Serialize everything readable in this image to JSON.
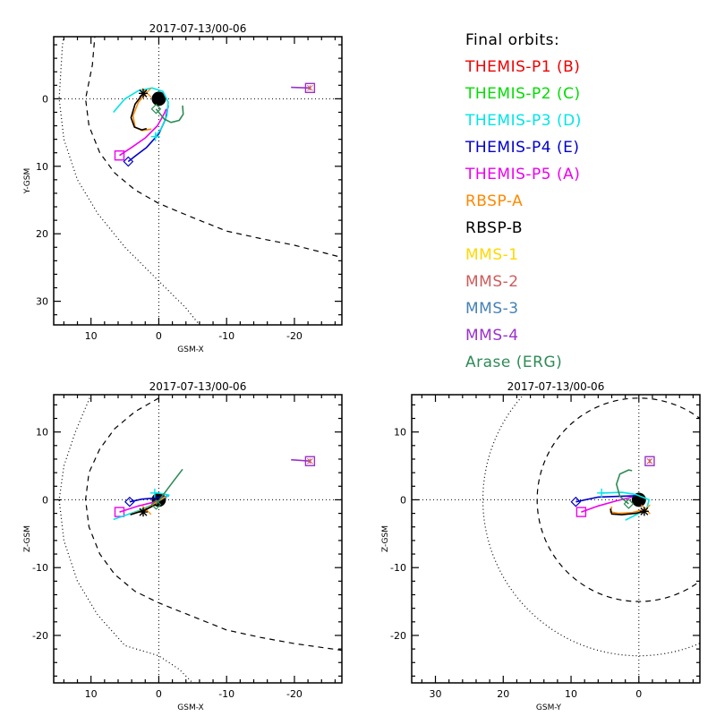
{
  "legend": {
    "title": "Final orbits:",
    "items": [
      {
        "label": "THEMIS-P1 (B)",
        "color": "#ee0000"
      },
      {
        "label": "THEMIS-P2 (C)",
        "color": "#00dd00"
      },
      {
        "label": "THEMIS-P3 (D)",
        "color": "#00e5e5"
      },
      {
        "label": "THEMIS-P4 (E)",
        "color": "#0000cc"
      },
      {
        "label": "THEMIS-P5 (A)",
        "color": "#ee00ee"
      },
      {
        "label": "RBSP-A",
        "color": "#ff8800"
      },
      {
        "label": "RBSP-B",
        "color": "#000000"
      },
      {
        "label": "MMS-1",
        "color": "#ffd700"
      },
      {
        "label": "MMS-2",
        "color": "#cd5c5c"
      },
      {
        "label": "MMS-3",
        "color": "#4682b4"
      },
      {
        "label": "MMS-4",
        "color": "#9932cc"
      },
      {
        "label": "Arase (ERG)",
        "color": "#2e8b57"
      }
    ]
  },
  "chart_data": [
    {
      "type": "line",
      "title": "2017-07-13/00-06",
      "xlabel": "GSM-X",
      "ylabel": "Y-GSM",
      "xlim": [
        15.5,
        -27
      ],
      "ylim": [
        -9.2,
        33.5
      ],
      "y_inverted": true,
      "xticks": [
        10,
        0,
        -10,
        -20
      ],
      "xtick_labels": [
        "10",
        "0",
        "-10",
        "-20"
      ],
      "yticks": [
        0,
        10,
        20,
        30
      ],
      "ytick_labels": [
        "0",
        "10",
        "20",
        "30"
      ],
      "grid": false,
      "zero_lines": true,
      "earth": {
        "x": 0,
        "y": 0,
        "r": 1
      },
      "boundaries": {
        "magnetopause": {
          "style": "dashed",
          "points": [
            [
              8.5,
              -20
            ],
            [
              9.8,
              -5
            ],
            [
              10.8,
              0
            ],
            [
              10.3,
              4
            ],
            [
              8.7,
              8
            ],
            [
              6.5,
              11
            ],
            [
              3.5,
              13.5
            ],
            [
              0,
              15.5
            ],
            [
              -5,
              17.6
            ],
            [
              -10,
              19.6
            ],
            [
              -15,
              20.7
            ],
            [
              -20,
              21.7
            ],
            [
              -27,
              23.5
            ]
          ]
        },
        "bow_shock": {
          "style": "dotted",
          "points": [
            [
              11.5,
              -25
            ],
            [
              14.2,
              -8
            ],
            [
              14.7,
              0
            ],
            [
              14,
              6
            ],
            [
              12,
              12
            ],
            [
              9,
              17
            ],
            [
              5,
              22
            ],
            [
              0,
              27
            ],
            [
              -4,
              31
            ],
            [
              -6,
              33.5
            ]
          ]
        }
      },
      "series": [
        {
          "name": "THEMIS-P4 (E)",
          "color": "#0000cc",
          "marker": "diamond",
          "points": [
            [
              4.5,
              9.3
            ],
            [
              3.5,
              8.5
            ],
            [
              1.8,
              7.2
            ],
            [
              0,
              5.2
            ],
            [
              -1,
              3
            ],
            [
              -1.4,
              1
            ]
          ]
        },
        {
          "name": "THEMIS-P5 (A)",
          "color": "#ee00ee",
          "marker": "square",
          "points": [
            [
              5.8,
              8.4
            ],
            [
              4,
              7.2
            ],
            [
              2,
              5.8
            ],
            [
              0.2,
              4
            ],
            [
              -0.8,
              2.2
            ],
            [
              -1.1,
              1.5
            ]
          ]
        },
        {
          "name": "THEMIS-P3 (D)",
          "color": "#00e5e5",
          "marker": "plus",
          "marker_at": [
            0.5,
            5.6
          ],
          "points": [
            [
              6.7,
              2
            ],
            [
              5,
              0
            ],
            [
              3,
              -1.2
            ],
            [
              1,
              -1.6
            ],
            [
              -0.6,
              -1.1
            ],
            [
              -1.4,
              0.5
            ],
            [
              -1.2,
              2.5
            ],
            [
              -0.3,
              4.5
            ],
            [
              0.5,
              5.6
            ]
          ]
        },
        {
          "name": "RBSP-A",
          "color": "#ff8800",
          "marker": "x",
          "marker_at": [
            1.8,
            -0.9
          ],
          "points": [
            [
              1.8,
              -0.9
            ],
            [
              3,
              0.5
            ],
            [
              3.8,
              2.5
            ],
            [
              3.5,
              4.2
            ],
            [
              2.5,
              4.7
            ],
            [
              1.1,
              4.5
            ]
          ]
        },
        {
          "name": "RBSP-B",
          "color": "#000000",
          "marker": "star",
          "marker_at": [
            2.3,
            -0.8
          ],
          "points": [
            [
              2.3,
              -0.8
            ],
            [
              3.5,
              0.8
            ],
            [
              4.1,
              2.8
            ],
            [
              3.6,
              4.2
            ],
            [
              2.5,
              4.6
            ],
            [
              1.8,
              4.4
            ]
          ]
        },
        {
          "name": "Arase (ERG)",
          "color": "#2e8b57",
          "marker": "diamond",
          "marker_at": [
            0.4,
            1.5
          ],
          "points": [
            [
              0.4,
              1.5
            ],
            [
              -0.8,
              3
            ],
            [
              -1.8,
              3.5
            ],
            [
              -3,
              3.2
            ],
            [
              -3.6,
              2.3
            ],
            [
              -3.5,
              1
            ]
          ]
        },
        {
          "name": "MMS",
          "color": "#9932cc",
          "marker": "square",
          "marker_at": [
            -22.3,
            -1.6
          ],
          "points": [
            [
              -19.5,
              -1.7
            ],
            [
              -22.3,
              -1.6
            ]
          ]
        }
      ]
    },
    {
      "type": "line",
      "title": "2017-07-13/00-06",
      "xlabel": "GSM-X",
      "ylabel": "Z-GSM",
      "xlim": [
        15.5,
        -27
      ],
      "ylim": [
        -27,
        15.5
      ],
      "xticks": [
        10,
        0,
        -10,
        -20
      ],
      "xtick_labels": [
        "10",
        "0",
        "-10",
        "-20"
      ],
      "yticks": [
        10,
        0,
        -10,
        -20
      ],
      "ytick_labels": [
        "10",
        "0",
        "-10",
        "-20"
      ],
      "grid": false,
      "zero_lines": true,
      "earth": {
        "x": 0,
        "y": 0,
        "r": 1
      },
      "boundaries": {
        "magnetopause": {
          "style": "dashed",
          "points": [
            [
              0,
              15
            ],
            [
              3.5,
              13
            ],
            [
              6.5,
              10.5
            ],
            [
              8.7,
              7.5
            ],
            [
              10.3,
              4
            ],
            [
              10.8,
              0
            ],
            [
              10.3,
              -4
            ],
            [
              8.7,
              -8
            ],
            [
              6.5,
              -11
            ],
            [
              3.5,
              -13.5
            ],
            [
              0,
              -15.2
            ],
            [
              -5,
              -17.2
            ],
            [
              -10,
              -19.2
            ],
            [
              -15,
              -20.3
            ],
            [
              -20,
              -21.2
            ],
            [
              -27,
              -22.2
            ]
          ]
        },
        "bow_shock": {
          "style": "dotted",
          "points": [
            [
              10,
              15.5
            ],
            [
              12.3,
              10
            ],
            [
              14,
              5
            ],
            [
              14.7,
              0
            ],
            [
              14,
              -6
            ],
            [
              12,
              -12
            ],
            [
              9,
              -17
            ],
            [
              5,
              -21.5
            ],
            [
              0,
              -23
            ],
            [
              -3,
              -25
            ],
            [
              -5,
              -27
            ]
          ]
        }
      },
      "series": [
        {
          "name": "THEMIS-P4 (E)",
          "color": "#0000cc",
          "marker": "diamond",
          "points": [
            [
              4.3,
              -0.3
            ],
            [
              2.5,
              0.1
            ],
            [
              0,
              0.3
            ],
            [
              -1.5,
              0.6
            ]
          ]
        },
        {
          "name": "THEMIS-P5 (A)",
          "color": "#ee00ee",
          "marker": "square",
          "points": [
            [
              5.8,
              -1.8
            ],
            [
              3,
              -0.9
            ],
            [
              0.5,
              -0.3
            ],
            [
              -1.2,
              0.4
            ]
          ]
        },
        {
          "name": "THEMIS-P3 (D)",
          "color": "#00e5e5",
          "marker": "plus",
          "marker_at": [
            0.6,
            1
          ],
          "points": [
            [
              6.7,
              -2.9
            ],
            [
              3,
              -1.6
            ],
            [
              0,
              -0.3
            ],
            [
              -1.5,
              0.7
            ],
            [
              0,
              1
            ],
            [
              0.6,
              1
            ]
          ]
        },
        {
          "name": "RBSP-A",
          "color": "#ff8800",
          "marker": "x",
          "marker_at": [
            1.8,
            -1.5
          ],
          "points": [
            [
              4,
              -2.1
            ],
            [
              2,
              -1.4
            ],
            [
              0.5,
              -0.5
            ],
            [
              -1,
              0.5
            ]
          ]
        },
        {
          "name": "RBSP-B",
          "color": "#000000",
          "marker": "star",
          "marker_at": [
            2.3,
            -1.8
          ],
          "points": [
            [
              4.2,
              -2.2
            ],
            [
              2,
              -1.5
            ],
            [
              0.3,
              -0.6
            ],
            [
              -1,
              0.2
            ]
          ]
        },
        {
          "name": "Arase (ERG)",
          "color": "#2e8b57",
          "marker": "diamond",
          "marker_at": [
            0.4,
            -0.7
          ],
          "points": [
            [
              0.4,
              -0.7
            ],
            [
              -1,
              1.2
            ],
            [
              -2.2,
              2.8
            ],
            [
              -3.5,
              4.5
            ]
          ]
        },
        {
          "name": "MMS",
          "color": "#9932cc",
          "marker": "square",
          "marker_at": [
            -22.3,
            5.7
          ],
          "points": [
            [
              -19.5,
              5.9
            ],
            [
              -22.3,
              5.7
            ]
          ]
        }
      ]
    },
    {
      "type": "line",
      "title": "2017-07-13/00-06",
      "xlabel": "GSM-Y",
      "ylabel": "Z-GSM",
      "xlim": [
        33.5,
        -9
      ],
      "ylim": [
        -27,
        15.5
      ],
      "xticks": [
        30,
        20,
        10,
        0
      ],
      "xtick_labels": [
        "30",
        "20",
        "10",
        "0"
      ],
      "yticks": [
        10,
        0,
        -10,
        -20
      ],
      "ytick_labels": [
        "10",
        "0",
        "-10",
        "-20"
      ],
      "grid": false,
      "zero_lines": true,
      "earth": {
        "x": 0,
        "y": 0,
        "r": 1
      },
      "boundaries": {
        "magnetopause": {
          "style": "dashed",
          "circle_r": 15
        },
        "bow_shock": {
          "style": "dotted",
          "circle_r": 23
        }
      },
      "series": [
        {
          "name": "THEMIS-P4 (E)",
          "color": "#0000cc",
          "marker": "diamond",
          "points": [
            [
              9.3,
              -0.3
            ],
            [
              6,
              0.4
            ],
            [
              3,
              0.5
            ],
            [
              0.5,
              0.6
            ]
          ]
        },
        {
          "name": "THEMIS-P5 (A)",
          "color": "#ee00ee",
          "marker": "square",
          "points": [
            [
              8.5,
              -1.8
            ],
            [
              6,
              -0.9
            ],
            [
              3.5,
              -0.2
            ],
            [
              1,
              0.4
            ]
          ]
        },
        {
          "name": "THEMIS-P3 (D)",
          "color": "#00e5e5",
          "marker": "plus",
          "marker_at": [
            5.5,
            1
          ],
          "points": [
            [
              5.5,
              1
            ],
            [
              2.5,
              1.1
            ],
            [
              0.5,
              0.8
            ],
            [
              -1.5,
              0
            ],
            [
              -1.2,
              -1.2
            ],
            [
              0,
              -2
            ],
            [
              2,
              -3
            ]
          ]
        },
        {
          "name": "RBSP-A",
          "color": "#ff8800",
          "marker": "x",
          "marker_at": [
            -1,
            -1.4
          ],
          "points": [
            [
              4,
              -1
            ],
            [
              4.2,
              -1.8
            ],
            [
              3,
              -2
            ],
            [
              1,
              -1.9
            ],
            [
              -1,
              -1.4
            ]
          ]
        },
        {
          "name": "RBSP-B",
          "color": "#000000",
          "marker": "star",
          "marker_at": [
            -0.8,
            -1.7
          ],
          "points": [
            [
              4.2,
              -1.3
            ],
            [
              4,
              -2.1
            ],
            [
              2.5,
              -2.2
            ],
            [
              0.5,
              -2
            ],
            [
              -0.8,
              -1.7
            ]
          ]
        },
        {
          "name": "Arase (ERG)",
          "color": "#2e8b57",
          "marker": "diamond",
          "marker_at": [
            1.5,
            -0.6
          ],
          "points": [
            [
              1.5,
              -0.6
            ],
            [
              2.8,
              0.5
            ],
            [
              3.3,
              2.3
            ],
            [
              2.8,
              3.8
            ],
            [
              1.5,
              4.4
            ],
            [
              1,
              4.3
            ]
          ]
        },
        {
          "name": "MMS",
          "color": "#9932cc",
          "marker": "square",
          "marker_at": [
            -1.6,
            5.7
          ],
          "points": [
            [
              -1.6,
              5.9
            ],
            [
              -1.6,
              5.7
            ]
          ]
        }
      ]
    }
  ]
}
